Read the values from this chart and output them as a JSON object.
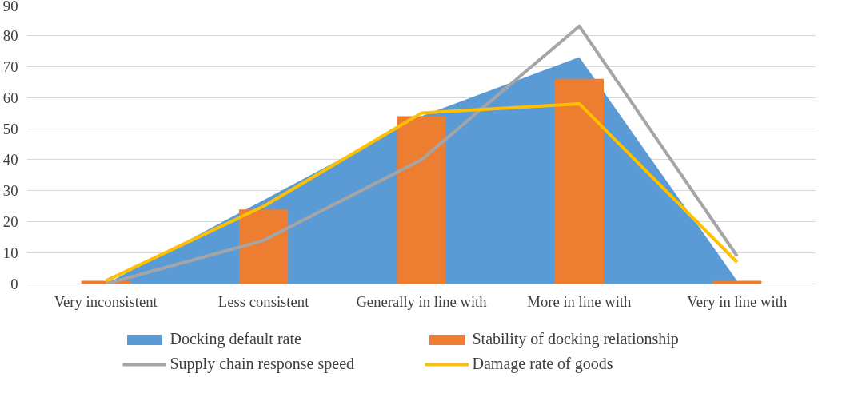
{
  "chart_data": {
    "type": "bar",
    "categories": [
      "Very inconsistent",
      "Less consistent",
      "Generally in line with",
      "More in line with",
      "Very in line with"
    ],
    "series": [
      {
        "name": "Docking default rate",
        "type": "area",
        "color": "#5b9bd5",
        "values": [
          0,
          null,
          54,
          73,
          1
        ]
      },
      {
        "name": "Stability of docking relationship",
        "color": "#ed7d31",
        "values": [
          1,
          24,
          54,
          66,
          1
        ]
      },
      {
        "name": "Supply chain response speed",
        "type": "line",
        "color": "#a5a5a5",
        "values": [
          0,
          14,
          40,
          83,
          9
        ]
      },
      {
        "name": "Damage rate of goods",
        "type": "line",
        "color": "#ffc000",
        "values": [
          1,
          25,
          55,
          58,
          7
        ]
      }
    ],
    "ylim": [
      0,
      90
    ],
    "yticks": [
      0,
      10,
      20,
      30,
      40,
      50,
      60,
      70,
      80,
      90
    ],
    "grid": "y",
    "legend": "bottom",
    "marker": "none",
    "line_style": "solid"
  }
}
